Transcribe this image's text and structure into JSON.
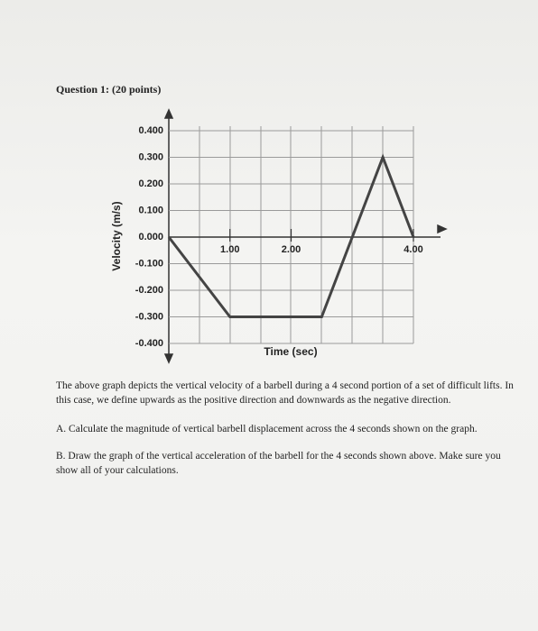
{
  "question": {
    "title": "Question 1: (20 points)",
    "description": "The above graph depicts the vertical velocity of a barbell during a 4 second portion of a set of difficult lifts. In this case, we define upwards as the positive direction and downwards as the negative direction.",
    "part_a": "A. Calculate the magnitude of vertical barbell displacement across the 4 seconds shown on the graph.",
    "part_b": "B. Draw the graph of the vertical acceleration of the barbell for the 4 seconds shown above. Make sure you show all of your calculations."
  },
  "chart_data": {
    "type": "line",
    "x_label": "Time (sec)",
    "y_label": "Velocity (m/s)",
    "x": [
      0,
      1,
      2.5,
      3.5,
      4
    ],
    "values": [
      0,
      -0.3,
      -0.3,
      0.3,
      0
    ],
    "color": "#444444",
    "xlim": [
      0,
      4
    ],
    "xticks": [
      {
        "value": 1,
        "label": "1.00"
      },
      {
        "value": 2,
        "label": "2.00"
      },
      {
        "value": 4,
        "label": "4.00"
      }
    ],
    "ylim": [
      -0.4,
      0.4
    ],
    "yticks": [
      {
        "value": 0.4,
        "label": "0.400"
      },
      {
        "value": 0.3,
        "label": "0.300"
      },
      {
        "value": 0.2,
        "label": "0.200"
      },
      {
        "value": 0.1,
        "label": "0.100"
      },
      {
        "value": 0,
        "label": "0.000"
      },
      {
        "value": -0.1,
        "label": "-0.100"
      },
      {
        "value": -0.2,
        "label": "-0.200"
      },
      {
        "value": -0.3,
        "label": "-0.300"
      },
      {
        "value": -0.4,
        "label": "-0.400"
      }
    ],
    "grid": true
  }
}
